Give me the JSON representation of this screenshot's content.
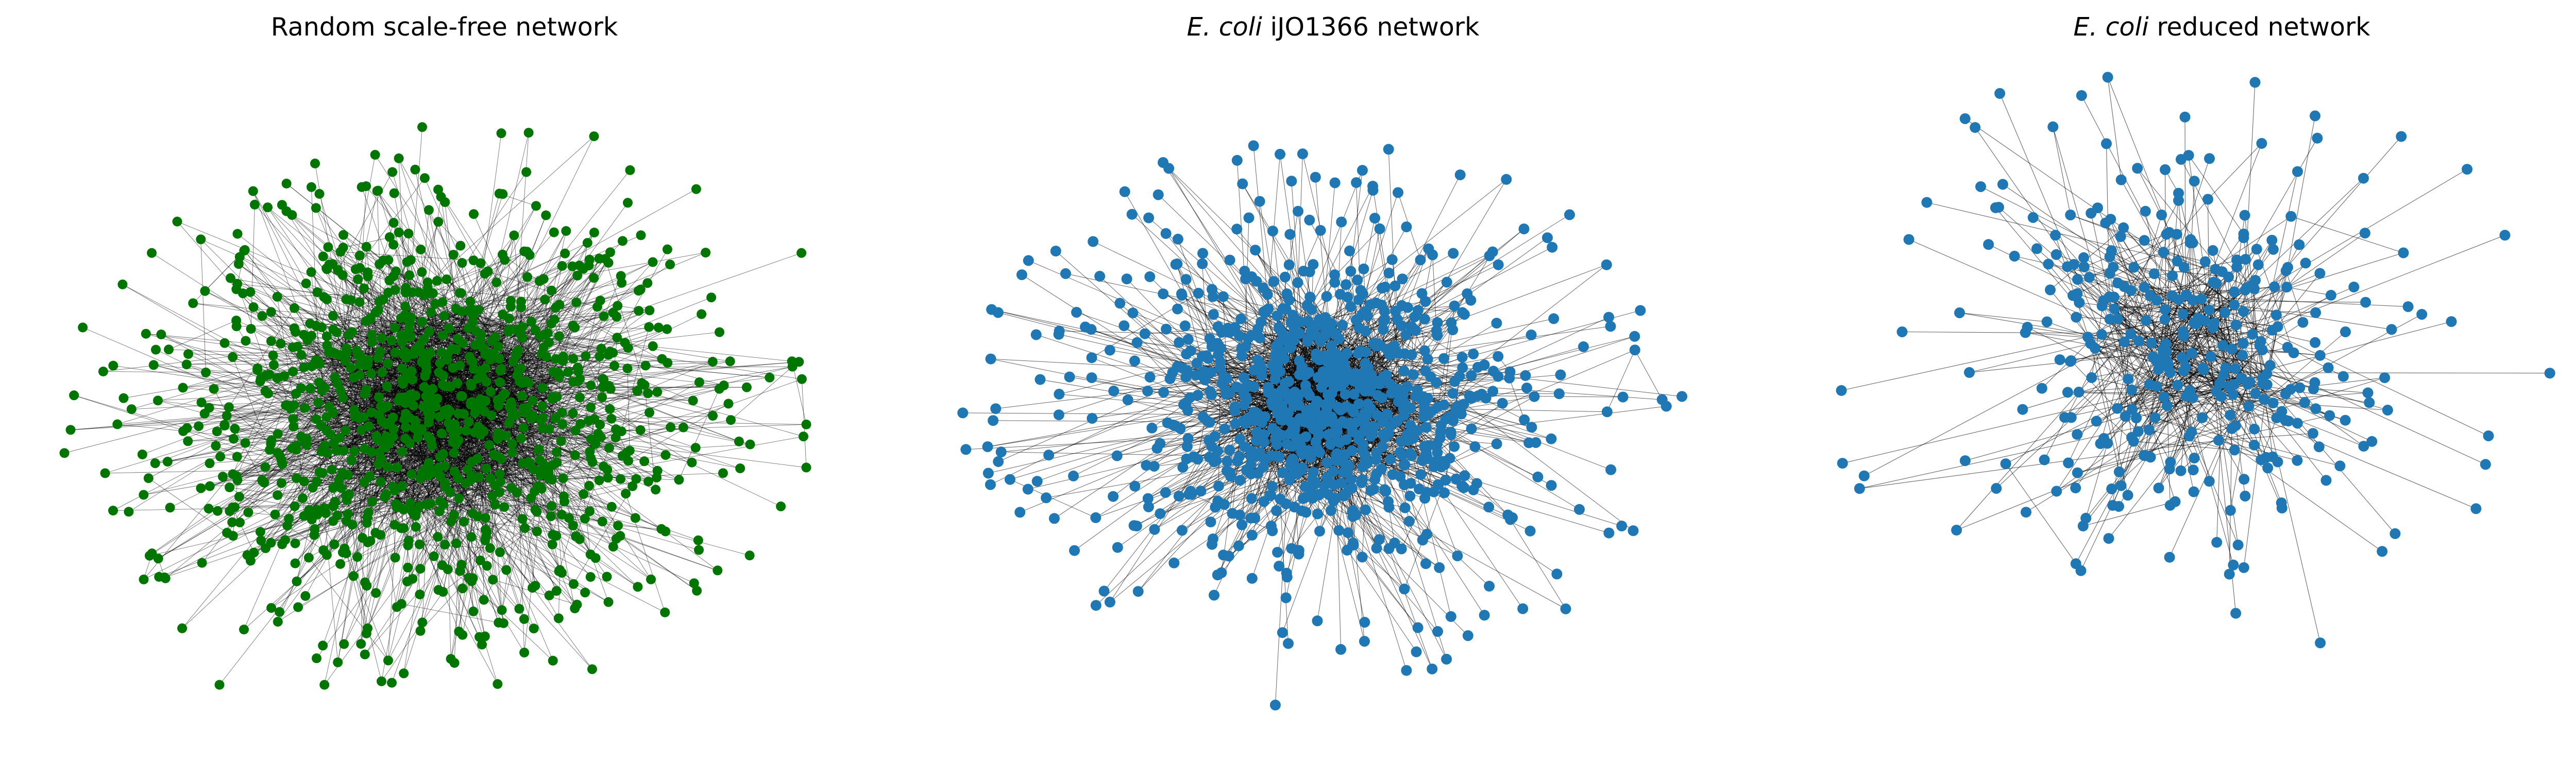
{
  "colors": {
    "random_nodes": "#007500",
    "ecoli_nodes": "#1f77b4",
    "edges": "#000000"
  },
  "panels": [
    {
      "title_italic": "",
      "title_rest": "Random scale-free network",
      "node_color": "#007500",
      "node_count": 1100,
      "style": "random"
    },
    {
      "title_italic": "E. coli",
      "title_rest": " iJO1366 network",
      "node_color": "#1f77b4",
      "node_count": 950,
      "style": "ijo"
    },
    {
      "title_italic": "E. coli",
      "title_rest": " reduced network",
      "node_color": "#1f77b4",
      "node_count": 360,
      "style": "reduced"
    }
  ]
}
